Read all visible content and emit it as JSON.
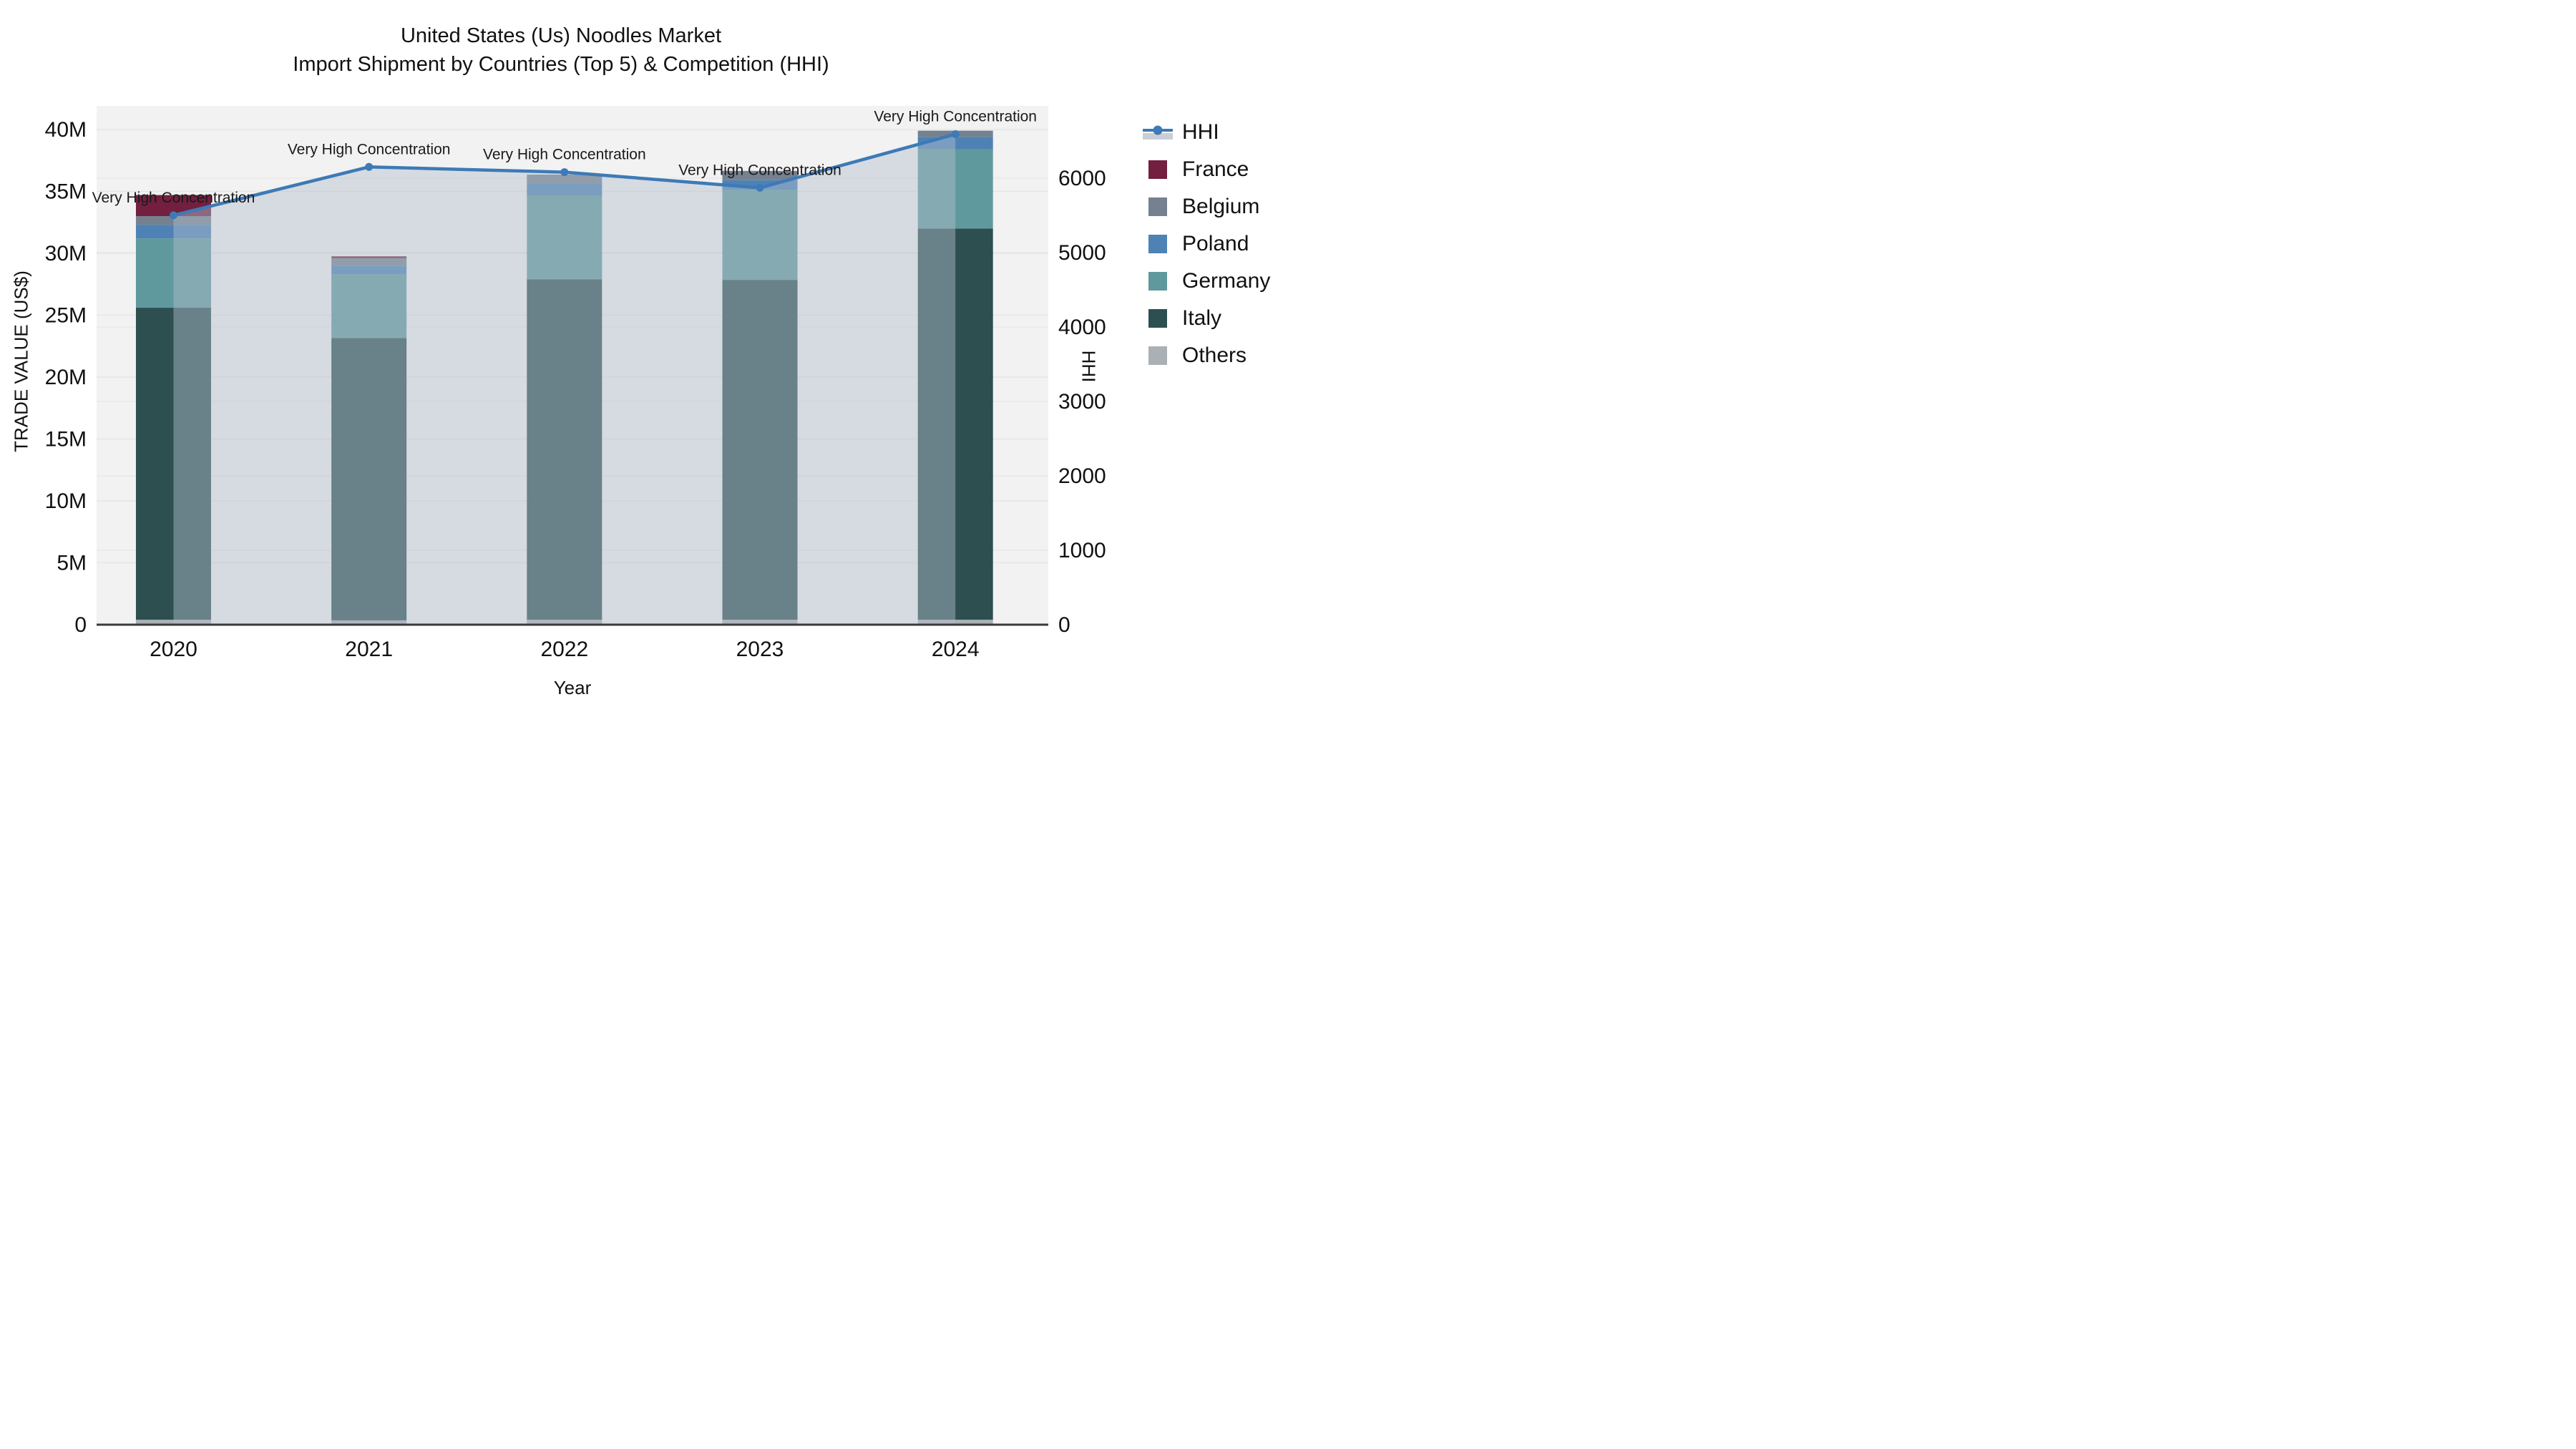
{
  "chart_data": {
    "type": "bar+line",
    "title_lines": [
      "United States (Us) Noodles Market",
      "Import Shipment by Countries (Top 5) & Competition (HHI)"
    ],
    "xlabel": "Year",
    "ylabel_left": "TRADE VALUE (US$)",
    "ylabel_right": "HHI",
    "categories": [
      "2020",
      "2021",
      "2022",
      "2023",
      "2024"
    ],
    "series": [
      {
        "name": "Others",
        "color": "#abb0b4",
        "values_musd": [
          0.4,
          0.35,
          0.4,
          0.4,
          0.4
        ]
      },
      {
        "name": "Italy",
        "color": "#2d4f50",
        "values_musd": [
          25.2,
          22.8,
          27.5,
          27.45,
          31.6
        ]
      },
      {
        "name": "Germany",
        "color": "#5f999d",
        "values_musd": [
          5.6,
          5.15,
          6.75,
          7.25,
          6.4
        ]
      },
      {
        "name": "Poland",
        "color": "#4e82b5",
        "values_musd": [
          1.1,
          0.7,
          0.95,
          0.8,
          1.0
        ]
      },
      {
        "name": "Belgium",
        "color": "#75818f",
        "values_musd": [
          0.7,
          0.6,
          0.75,
          0.75,
          0.5
        ]
      },
      {
        "name": "France",
        "color": "#721f40",
        "values_musd": [
          1.7,
          0.15,
          0.0,
          0.0,
          0.0
        ]
      }
    ],
    "bar_totals_musd": [
      34.7,
      29.75,
      36.35,
      36.65,
      39.9
    ],
    "hhi": {
      "name": "HHI",
      "color": "#3d7ab6",
      "fill_color": "rgba(180,190,205,0.45)",
      "values": [
        5500,
        6150,
        6080,
        5870,
        6590
      ]
    },
    "annotations": [
      "Very High Concentration",
      "Very High Concentration",
      "Very High Concentration",
      "Very High Concentration",
      "Very High Concentration"
    ],
    "y_left": {
      "tick_labels": [
        "0",
        "5M",
        "10M",
        "15M",
        "20M",
        "25M",
        "30M",
        "35M",
        "40M"
      ],
      "tick_values_musd": [
        0,
        5,
        10,
        15,
        20,
        25,
        30,
        35,
        40
      ],
      "range_musd": [
        0,
        41.9
      ],
      "grid": true
    },
    "y_right": {
      "tick_labels": [
        "0",
        "1000",
        "2000",
        "3000",
        "4000",
        "5000",
        "6000"
      ],
      "tick_values": [
        0,
        1000,
        2000,
        3000,
        4000,
        5000,
        6000
      ],
      "range": [
        0,
        6970
      ],
      "grid": true
    },
    "legend_position": "right",
    "plot_bg": "#f2f2f2",
    "grid_color": "#e6e6e6",
    "axis_line_color": "#3a3a3a"
  },
  "legend": {
    "items": [
      {
        "label": "HHI"
      },
      {
        "label": "France"
      },
      {
        "label": "Belgium"
      },
      {
        "label": "Poland"
      },
      {
        "label": "Germany"
      },
      {
        "label": "Italy"
      },
      {
        "label": "Others"
      }
    ]
  }
}
